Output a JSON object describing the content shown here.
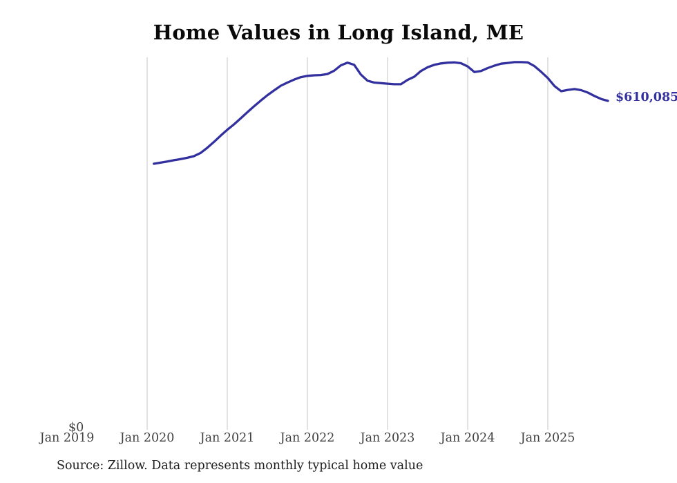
{
  "chart": {
    "title": "Home Values in Long Island, ME",
    "end_value_label": "$610,085",
    "y_axis_zero_label": "$0",
    "source_note": "Source: Zillow. Data represents monthly typical home value",
    "line_color": "#32309e",
    "gridline_color": "#c6c6c6"
  },
  "chart_data": {
    "type": "line",
    "title": "Home Values in Long Island, ME",
    "series_name": "Typical home value (USD)",
    "frequency": "monthly",
    "grid": "vertical",
    "legend": "none",
    "x_tick_labels": [
      "Jan 2019",
      "Jan 2020",
      "Jan 2021",
      "Jan 2022",
      "Jan 2023",
      "Jan 2024",
      "Jan 2025"
    ],
    "y_tick_labels": [
      "$0"
    ],
    "ylim": [
      0,
      690000
    ],
    "x_range": [
      "2020-01",
      "2025-09"
    ],
    "annotation_final_value": "$610,085",
    "months": [
      "2020-01",
      "2020-02",
      "2020-03",
      "2020-04",
      "2020-05",
      "2020-06",
      "2020-07",
      "2020-08",
      "2020-09",
      "2020-10",
      "2020-11",
      "2020-12",
      "2021-01",
      "2021-02",
      "2021-03",
      "2021-04",
      "2021-05",
      "2021-06",
      "2021-07",
      "2021-08",
      "2021-09",
      "2021-10",
      "2021-11",
      "2021-12",
      "2022-01",
      "2022-02",
      "2022-03",
      "2022-04",
      "2022-05",
      "2022-06",
      "2022-07",
      "2022-08",
      "2022-09",
      "2022-10",
      "2022-11",
      "2022-12",
      "2023-01",
      "2023-02",
      "2023-03",
      "2023-04",
      "2023-05",
      "2023-06",
      "2023-07",
      "2023-08",
      "2023-09",
      "2023-10",
      "2023-11",
      "2023-12",
      "2024-01",
      "2024-02",
      "2024-03",
      "2024-04",
      "2024-05",
      "2024-06",
      "2024-07",
      "2024-08",
      "2024-09",
      "2024-10",
      "2024-11",
      "2024-12",
      "2025-01",
      "2025-02",
      "2025-03",
      "2025-04",
      "2025-05",
      "2025-06",
      "2025-07",
      "2025-08",
      "2025-09"
    ],
    "values": [
      493500,
      495500,
      497500,
      500000,
      502000,
      504500,
      507500,
      513500,
      523000,
      534000,
      545500,
      556500,
      566500,
      577500,
      589000,
      600000,
      610500,
      620500,
      629500,
      638000,
      644000,
      649500,
      654000,
      656500,
      657500,
      658000,
      660000,
      666000,
      676000,
      681000,
      677000,
      659000,
      647500,
      644000,
      643000,
      642000,
      641000,
      641000,
      649000,
      655000,
      665500,
      672500,
      677000,
      679500,
      681000,
      681500,
      680000,
      674000,
      663500,
      665500,
      671000,
      675500,
      679000,
      680500,
      682000,
      682000,
      681500,
      674500,
      664000,
      652500,
      637500,
      628000,
      630500,
      632000,
      630000,
      625500,
      619000,
      613500,
      610085
    ]
  }
}
